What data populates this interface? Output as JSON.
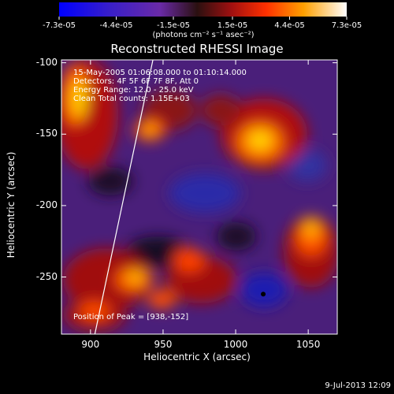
{
  "colorbar": {
    "ticks": [
      "-7.3e-05",
      "-4.4e-05",
      "-1.5e-05",
      "1.5e-05",
      "4.4e-05",
      "7.3e-05"
    ],
    "units": "(photons cm⁻² s⁻¹ asec⁻²)",
    "range": [
      -7.3e-05,
      7.3e-05
    ]
  },
  "annotations": {
    "time": "15-May-2005 01:06:08.000 to 01:10:14.000",
    "detectors": "Detectors: 4F 5F 6F 7F 8F, Att 0",
    "energy": "Energy Range: 12.0 - 25.0 keV",
    "clean": "Clean    Total counts: 1.15E+03",
    "peak": "Position of Peak = [938,-152]"
  },
  "footer": {
    "date": "9-Jul-2013 12:09"
  },
  "chart_data": {
    "type": "heatmap",
    "title": "Reconstructed RHESSI Image",
    "xlabel": "Heliocentric X (arcsec)",
    "ylabel": "Heliocentric Y (arcsec)",
    "xlim": [
      880,
      1070
    ],
    "ylim": [
      -290,
      -98
    ],
    "x_ticks": [
      900,
      950,
      1000,
      1050
    ],
    "y_ticks": [
      -100,
      -150,
      -200,
      -250
    ],
    "x_tick_labels": [
      "900",
      "950",
      "1000",
      "1050"
    ],
    "y_tick_labels": [
      "-100",
      "-150",
      "-200",
      "-250"
    ],
    "limb_line": [
      [
        903,
        -290
      ],
      [
        943,
        -98
      ]
    ],
    "peak": [
      938,
      -152
    ],
    "min_marker": [
      1019,
      -262
    ]
  }
}
